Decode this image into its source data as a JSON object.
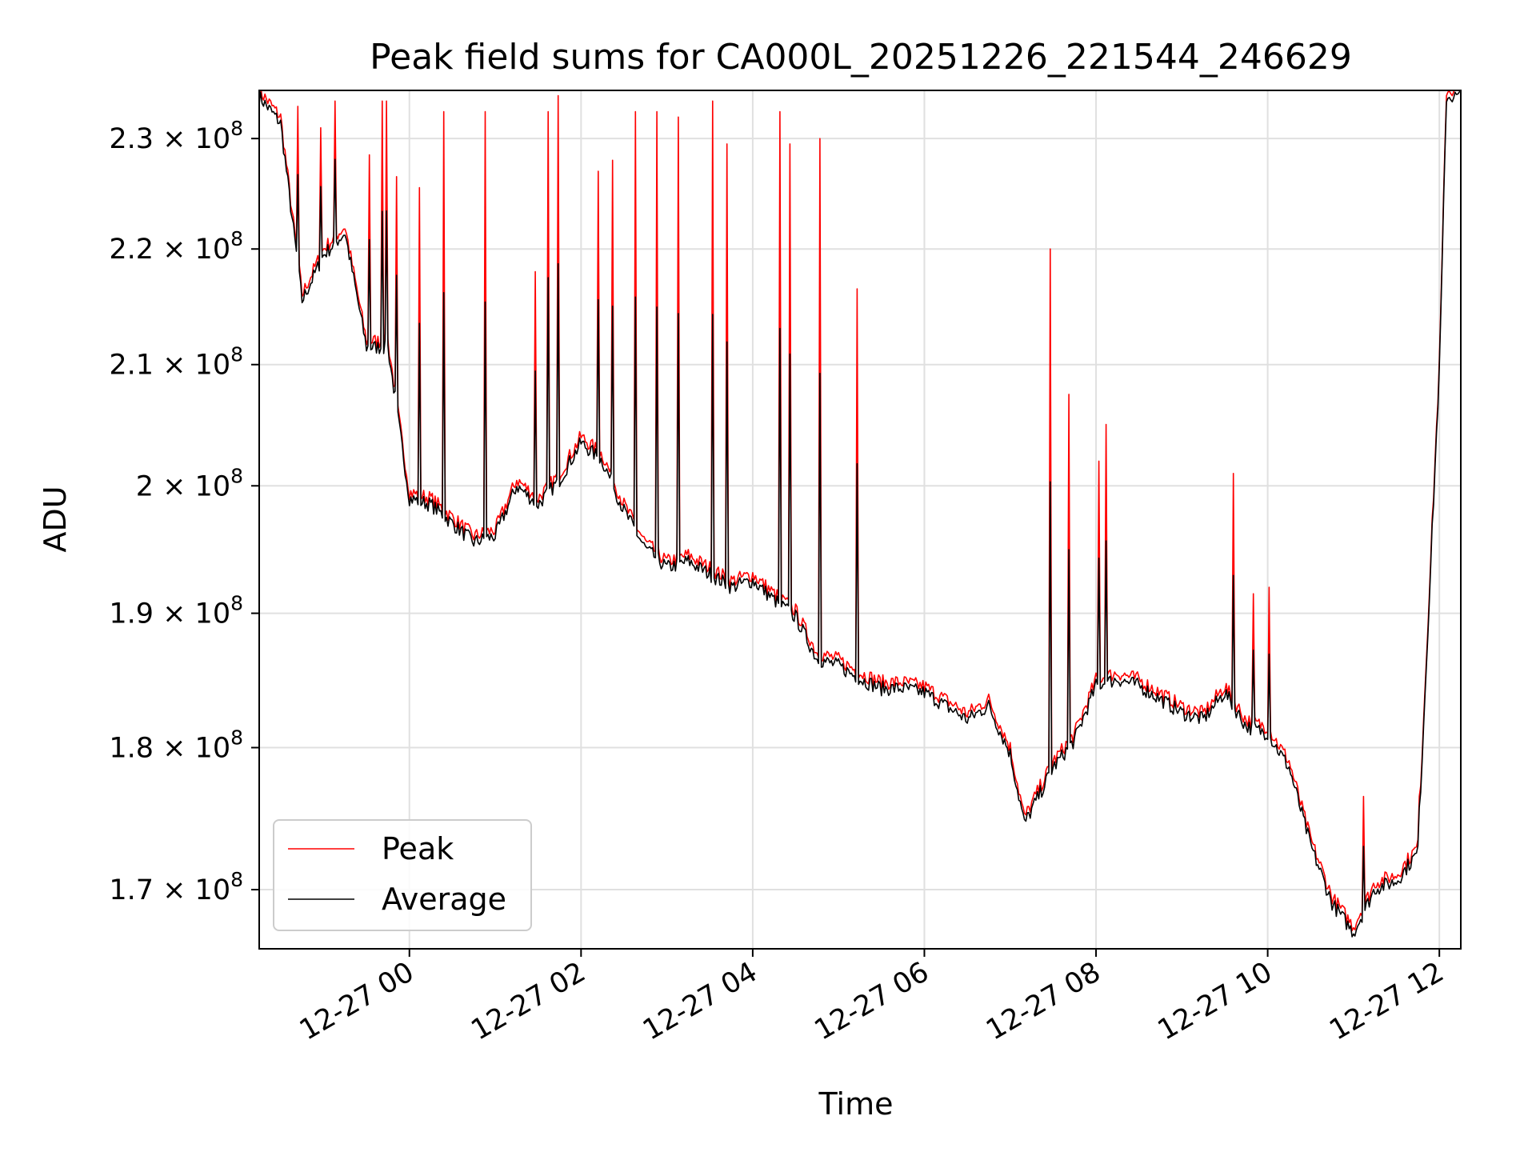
{
  "chart_data": {
    "type": "line",
    "title": "Peak field sums for CA000L_20251226_221544_246629",
    "xlabel": "Time",
    "ylabel": "ADU",
    "yscale": "log",
    "xlim": [
      "2025-12-26T22:15:00",
      "2025-12-27T12:15:00"
    ],
    "ylim": [
      166000000,
      234500000
    ],
    "grid": true,
    "legend_position": "lower-left",
    "x_ticks": [
      {
        "value": "2025-12-27T00:00",
        "label": "12-27 00"
      },
      {
        "value": "2025-12-27T02:00",
        "label": "12-27 02"
      },
      {
        "value": "2025-12-27T04:00",
        "label": "12-27 04"
      },
      {
        "value": "2025-12-27T06:00",
        "label": "12-27 06"
      },
      {
        "value": "2025-12-27T08:00",
        "label": "12-27 08"
      },
      {
        "value": "2025-12-27T10:00",
        "label": "12-27 10"
      },
      {
        "value": "2025-12-27T12:00",
        "label": "12-27 12"
      }
    ],
    "y_ticks": [
      {
        "value": 170000000,
        "mantissa": "1.7",
        "base": "10",
        "exp": "8"
      },
      {
        "value": 180000000,
        "mantissa": "1.8",
        "base": "10",
        "exp": "8"
      },
      {
        "value": 190000000,
        "mantissa": "1.9",
        "base": "10",
        "exp": "8"
      },
      {
        "value": 200000000,
        "mantissa": "2",
        "base": "10",
        "exp": "8"
      },
      {
        "value": 210000000,
        "mantissa": "2.1",
        "base": "10",
        "exp": "8"
      },
      {
        "value": 220000000,
        "mantissa": "2.2",
        "base": "10",
        "exp": "8"
      },
      {
        "value": 230000000,
        "mantissa": "2.3",
        "base": "10",
        "exp": "8"
      }
    ],
    "series": [
      {
        "name": "Peak",
        "color": "#ff0000",
        "baseline": [
          [
            "2025-12-26T22:15",
            234500000
          ],
          [
            "2025-12-26T22:30",
            232000000
          ],
          [
            "2025-12-26T22:45",
            216000000
          ],
          [
            "2025-12-26T23:00",
            220000000
          ],
          [
            "2025-12-26T23:15",
            222000000
          ],
          [
            "2025-12-26T23:30",
            212000000
          ],
          [
            "2025-12-26T23:45",
            212000000
          ],
          [
            "2025-12-27T00:00",
            199500000
          ],
          [
            "2025-12-27T00:15",
            199000000
          ],
          [
            "2025-12-27T00:45",
            196000000
          ],
          [
            "2025-12-27T01:00",
            196500000
          ],
          [
            "2025-12-27T01:15",
            200500000
          ],
          [
            "2025-12-27T01:30",
            199000000
          ],
          [
            "2025-12-27T01:45",
            201000000
          ],
          [
            "2025-12-27T02:00",
            204000000
          ],
          [
            "2025-12-27T02:15",
            202500000
          ],
          [
            "2025-12-27T02:30",
            198500000
          ],
          [
            "2025-12-27T02:45",
            195500000
          ],
          [
            "2025-12-27T03:00",
            194000000
          ],
          [
            "2025-12-27T03:15",
            194500000
          ],
          [
            "2025-12-27T03:30",
            193500000
          ],
          [
            "2025-12-27T03:45",
            192500000
          ],
          [
            "2025-12-27T04:00",
            193000000
          ],
          [
            "2025-12-27T04:15",
            191500000
          ],
          [
            "2025-12-27T04:30",
            190200000
          ],
          [
            "2025-12-27T04:45",
            187000000
          ],
          [
            "2025-12-27T05:00",
            186500000
          ],
          [
            "2025-12-27T05:15",
            185500000
          ],
          [
            "2025-12-27T05:30",
            184800000
          ],
          [
            "2025-12-27T05:45",
            184800000
          ],
          [
            "2025-12-27T06:00",
            184500000
          ],
          [
            "2025-12-27T06:15",
            183500000
          ],
          [
            "2025-12-27T06:30",
            182500000
          ],
          [
            "2025-12-27T06:45",
            183500000
          ],
          [
            "2025-12-27T07:00",
            180000000
          ],
          [
            "2025-12-27T07:10",
            175000000
          ],
          [
            "2025-12-27T07:30",
            179000000
          ],
          [
            "2025-12-27T07:45",
            181000000
          ],
          [
            "2025-12-27T08:00",
            185000000
          ],
          [
            "2025-12-27T08:15",
            185500000
          ],
          [
            "2025-12-27T08:30",
            185000000
          ],
          [
            "2025-12-27T08:45",
            184000000
          ],
          [
            "2025-12-27T09:00",
            183000000
          ],
          [
            "2025-12-27T09:15",
            182500000
          ],
          [
            "2025-12-27T09:30",
            184500000
          ],
          [
            "2025-12-27T09:45",
            182000000
          ],
          [
            "2025-12-27T10:00",
            181500000
          ],
          [
            "2025-12-27T10:15",
            179000000
          ],
          [
            "2025-12-27T10:30",
            173500000
          ],
          [
            "2025-12-27T10:45",
            169500000
          ],
          [
            "2025-12-27T11:00",
            167500000
          ],
          [
            "2025-12-27T11:15",
            170500000
          ],
          [
            "2025-12-27T11:30",
            171000000
          ],
          [
            "2025-12-27T11:45",
            173000000
          ],
          [
            "2025-12-27T12:00",
            210000000
          ],
          [
            "2025-12-27T12:05",
            234500000
          ],
          [
            "2025-12-27T12:15",
            234500000
          ]
        ],
        "spikes": [
          [
            "2025-12-26T22:42",
            233000000
          ],
          [
            "2025-12-26T22:58",
            231000000
          ],
          [
            "2025-12-26T23:08",
            233500000
          ],
          [
            "2025-12-26T23:32",
            228500000
          ],
          [
            "2025-12-26T23:41",
            233500000
          ],
          [
            "2025-12-26T23:44",
            233500000
          ],
          [
            "2025-12-26T23:51",
            226500000
          ],
          [
            "2025-12-27T00:07",
            225500000
          ],
          [
            "2025-12-27T00:24",
            232500000
          ],
          [
            "2025-12-27T00:53",
            232500000
          ],
          [
            "2025-12-27T01:28",
            218000000
          ],
          [
            "2025-12-27T01:37",
            232500000
          ],
          [
            "2025-12-27T01:44",
            234000000
          ],
          [
            "2025-12-27T02:12",
            227000000
          ],
          [
            "2025-12-27T02:22",
            228000000
          ],
          [
            "2025-12-27T02:38",
            232500000
          ],
          [
            "2025-12-27T02:53",
            232500000
          ],
          [
            "2025-12-27T03:08",
            232000000
          ],
          [
            "2025-12-27T03:32",
            233500000
          ],
          [
            "2025-12-27T03:42",
            229500000
          ],
          [
            "2025-12-27T04:19",
            232500000
          ],
          [
            "2025-12-27T04:26",
            229500000
          ],
          [
            "2025-12-27T04:47",
            230000000
          ],
          [
            "2025-12-27T05:13",
            216500000
          ],
          [
            "2025-12-27T07:28",
            220000000
          ],
          [
            "2025-12-27T07:41",
            207500000
          ],
          [
            "2025-12-27T08:02",
            202000000
          ],
          [
            "2025-12-27T08:07",
            205000000
          ],
          [
            "2025-12-27T09:36",
            201000000
          ],
          [
            "2025-12-27T09:50",
            191500000
          ],
          [
            "2025-12-27T10:01",
            192000000
          ],
          [
            "2025-12-27T11:07",
            176500000
          ],
          [
            "2025-12-27T11:46",
            176500000
          ]
        ]
      },
      {
        "name": "Average",
        "color": "#000000",
        "offset_fraction": -0.0025,
        "spike_fraction": 0.55
      }
    ]
  }
}
